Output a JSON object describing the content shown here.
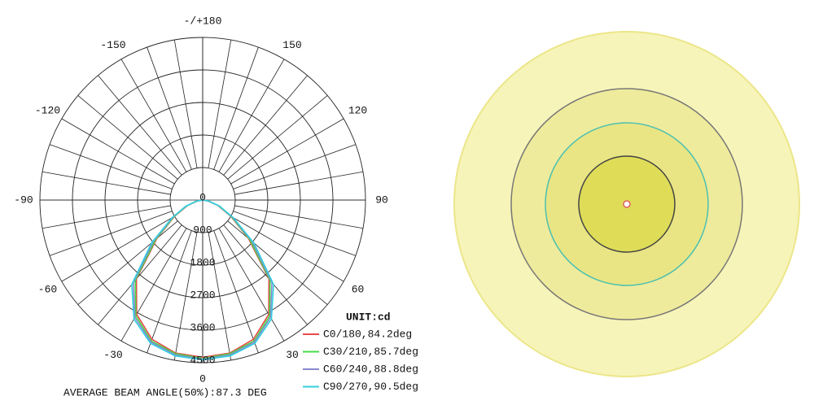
{
  "chart_data": {
    "type": "polar",
    "title": "AVERAGE BEAM ANGLE(50%):87.3 DEG",
    "unit_label": "UNIT:cd",
    "x": [
      -90,
      -80,
      -70,
      -60,
      -50,
      -40,
      -30,
      -20,
      -10,
      0,
      10,
      20,
      30,
      40,
      50,
      60,
      70,
      80,
      90
    ],
    "series": [
      {
        "name": "C0/180,84.2deg",
        "color": "#e84a4a",
        "values": [
          0,
          150,
          450,
          900,
          1650,
          2850,
          3650,
          4100,
          4300,
          4350,
          4300,
          4100,
          3650,
          2850,
          1650,
          900,
          450,
          150,
          0
        ]
      },
      {
        "name": "C30/210,85.7deg",
        "color": "#44dd44",
        "values": [
          0,
          160,
          470,
          920,
          1700,
          2900,
          3700,
          4150,
          4320,
          4380,
          4320,
          4150,
          3700,
          2900,
          1700,
          920,
          470,
          160,
          0
        ]
      },
      {
        "name": "C60/240,88.8deg",
        "color": "#8888d0",
        "values": [
          0,
          170,
          490,
          950,
          1780,
          2980,
          3750,
          4180,
          4350,
          4400,
          4350,
          4180,
          3750,
          2980,
          1780,
          950,
          490,
          170,
          0
        ]
      },
      {
        "name": "C90/270,90.5deg",
        "color": "#33d0e0",
        "values": [
          0,
          180,
          500,
          980,
          1850,
          3050,
          3800,
          4220,
          4380,
          4420,
          4380,
          4220,
          3800,
          3050,
          1850,
          980,
          500,
          180,
          0
        ]
      }
    ],
    "rlim": [
      0,
      4500
    ],
    "rticks": [
      0,
      900,
      1800,
      2700,
      3600,
      4500
    ],
    "thetaticks": [
      0,
      30,
      60,
      90,
      120,
      150,
      {
        "value": 180,
        "label": "-/+180"
      },
      -150,
      -120,
      -90,
      -60,
      -30
    ]
  }
}
